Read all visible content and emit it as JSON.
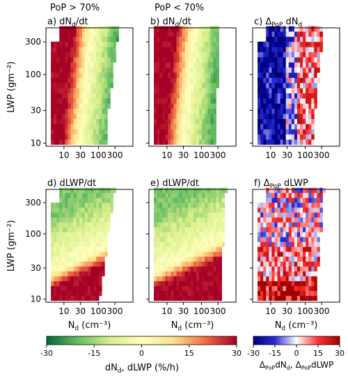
{
  "figure": {
    "header_left": "PoP > 70%",
    "header_right": "PoP < 70%"
  },
  "chart_data": [
    {
      "type": "heatmap",
      "panel": "a",
      "label": "a)",
      "title_main": "dN",
      "title_sub": "d",
      "title_tail": "/dt",
      "xlabel_main": "",
      "xlabel_sub": "",
      "xlabel_unit": "",
      "ylabel": "LWP (gm⁻²)",
      "colormap": "rate",
      "field": "dNd",
      "xscale": "log",
      "yscale": "log",
      "xlim": [
        3,
        1000
      ],
      "ylim": [
        9,
        480
      ],
      "xticks": [
        {
          "v": 10,
          "label": "10"
        },
        {
          "v": 30,
          "label": "30"
        },
        {
          "v": 100,
          "label": "100"
        },
        {
          "v": 300,
          "label": "300"
        }
      ],
      "yticks": [
        {
          "v": 10,
          "label": "10"
        },
        {
          "v": 30,
          "label": "30"
        },
        {
          "v": 100,
          "label": "100"
        },
        {
          "v": 300,
          "label": "300"
        }
      ]
    },
    {
      "type": "heatmap",
      "panel": "b",
      "label": "b)",
      "title_main": "dN",
      "title_sub": "d",
      "title_tail": "/dt",
      "xlabel_main": "",
      "xlabel_sub": "",
      "xlabel_unit": "",
      "ylabel": "",
      "colormap": "rate",
      "field": "dNd",
      "xscale": "log",
      "yscale": "log",
      "xlim": [
        3,
        1000
      ],
      "ylim": [
        9,
        480
      ],
      "xticks": [
        {
          "v": 10,
          "label": "10"
        },
        {
          "v": 30,
          "label": "30"
        },
        {
          "v": 100,
          "label": "100"
        },
        {
          "v": 300,
          "label": "300"
        }
      ],
      "yticks": []
    },
    {
      "type": "heatmap",
      "panel": "c",
      "label": "c)",
      "title_main": "Δ",
      "title_sub": "PoP",
      "title_tail": " dN",
      "title_sub2": "d",
      "xlabel_main": "",
      "xlabel_sub": "",
      "xlabel_unit": "",
      "ylabel": "",
      "colormap": "diff",
      "field": "delta_dNd",
      "xscale": "log",
      "yscale": "log",
      "xlim": [
        3,
        1000
      ],
      "ylim": [
        9,
        480
      ],
      "xticks": [
        {
          "v": 10,
          "label": "10"
        },
        {
          "v": 30,
          "label": "30"
        },
        {
          "v": 100,
          "label": "100"
        },
        {
          "v": 300,
          "label": "300"
        }
      ],
      "yticks": []
    },
    {
      "type": "heatmap",
      "panel": "d",
      "label": "d)",
      "title_main": "dLWP/dt",
      "title_sub": "",
      "title_tail": "",
      "xlabel_main": "N",
      "xlabel_sub": "d",
      "xlabel_unit": " (cm⁻³)",
      "ylabel": "LWP (gm⁻²)",
      "colormap": "rate",
      "field": "dLWP",
      "xscale": "log",
      "yscale": "log",
      "xlim": [
        3,
        1000
      ],
      "ylim": [
        9,
        480
      ],
      "xticks": [
        {
          "v": 10,
          "label": "10"
        },
        {
          "v": 30,
          "label": "30"
        },
        {
          "v": 100,
          "label": "100"
        },
        {
          "v": 300,
          "label": "300"
        }
      ],
      "yticks": [
        {
          "v": 10,
          "label": "10"
        },
        {
          "v": 30,
          "label": "30"
        },
        {
          "v": 100,
          "label": "100"
        },
        {
          "v": 300,
          "label": "300"
        }
      ]
    },
    {
      "type": "heatmap",
      "panel": "e",
      "label": "e)",
      "title_main": "dLWP/dt",
      "title_sub": "",
      "title_tail": "",
      "xlabel_main": "N",
      "xlabel_sub": "d",
      "xlabel_unit": " (cm⁻³)",
      "ylabel": "",
      "colormap": "rate",
      "field": "dLWP",
      "xscale": "log",
      "yscale": "log",
      "xlim": [
        3,
        1000
      ],
      "ylim": [
        9,
        480
      ],
      "xticks": [
        {
          "v": 10,
          "label": "10"
        },
        {
          "v": 30,
          "label": "30"
        },
        {
          "v": 100,
          "label": "100"
        },
        {
          "v": 300,
          "label": "300"
        }
      ],
      "yticks": []
    },
    {
      "type": "heatmap",
      "panel": "f",
      "label": "f)",
      "title_main": "Δ",
      "title_sub": "PoP",
      "title_tail": " dLWP",
      "xlabel_main": "N",
      "xlabel_sub": "d",
      "xlabel_unit": " (cm⁻³)",
      "ylabel": "",
      "colormap": "diff",
      "field": "delta_dLWP",
      "xscale": "log",
      "yscale": "log",
      "xlim": [
        3,
        1000
      ],
      "ylim": [
        9,
        480
      ],
      "xticks": [
        {
          "v": 10,
          "label": "10"
        },
        {
          "v": 30,
          "label": "30"
        },
        {
          "v": 100,
          "label": "100"
        },
        {
          "v": 300,
          "label": "300"
        }
      ],
      "yticks": []
    }
  ],
  "colorbars": [
    {
      "colormap": "rate",
      "range": [
        -30,
        30
      ],
      "ticks": [
        {
          "v": -30,
          "label": "-30"
        },
        {
          "v": -15,
          "label": "-15"
        },
        {
          "v": 0,
          "label": "0"
        },
        {
          "v": 15,
          "label": "15"
        },
        {
          "v": 30,
          "label": "30"
        }
      ],
      "label": "dN",
      "label_sub": "d",
      "label_tail": ", dLWP (%/h)"
    },
    {
      "colormap": "diff",
      "range": [
        -30,
        30
      ],
      "ticks": [
        {
          "v": -30,
          "label": "-30"
        },
        {
          "v": -15,
          "label": "-15"
        },
        {
          "v": 0,
          "label": "0"
        },
        {
          "v": 15,
          "label": "15"
        },
        {
          "v": 30,
          "label": "30"
        }
      ],
      "label": "Δ",
      "label_sub": "PoP",
      "label_mid": "dN",
      "label_sub2": "d",
      "label_mid2": ", Δ",
      "label_sub3": "PoP",
      "label_tail": "dLWP"
    }
  ],
  "colors": {
    "rate_stops": [
      "#006837",
      "#66bd63",
      "#d9ef8b",
      "#ffffbf",
      "#fee08b",
      "#f46d43",
      "#a50026"
    ],
    "diff_stops": [
      "#000080",
      "#2a2ad8",
      "#ffffff",
      "#ff3030",
      "#a00000"
    ]
  }
}
